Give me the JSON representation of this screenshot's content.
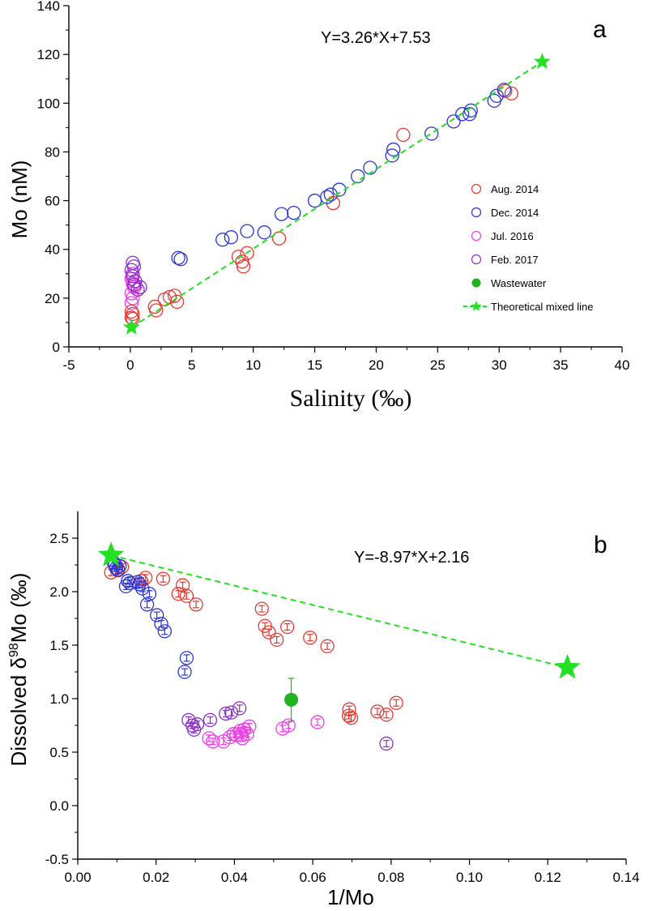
{
  "colors": {
    "aug2014": "#e8372f",
    "dec2014": "#2a35d6",
    "jul2016": "#ee3ce8",
    "feb2017": "#8a2fc9",
    "wastewater": "#22b322",
    "theoretical": "#22e022",
    "axis": "#000000"
  },
  "chart_data": [
    {
      "type": "scatter",
      "panel_label": "a",
      "equation": "Y=3.26*X+7.53",
      "xlabel": "Salinity (‰)",
      "ylabel": "Mo (nM)",
      "xlim": [
        -5,
        40
      ],
      "ylim": [
        0,
        140
      ],
      "xticks": [
        "-5",
        "0",
        "5",
        "10",
        "15",
        "20",
        "25",
        "30",
        "35",
        "40"
      ],
      "yticks": [
        "0",
        "20",
        "40",
        "60",
        "80",
        "100",
        "120",
        "140"
      ],
      "legend_position": "center-right",
      "series": [
        {
          "name": "Aug. 2014",
          "key": "aug2014",
          "marker": "open-circle",
          "points": [
            [
              0.1,
              12
            ],
            [
              0.2,
              13.5
            ],
            [
              0.1,
              14.5
            ],
            [
              0.2,
              11.5
            ],
            [
              2.0,
              16.5
            ],
            [
              2.1,
              15
            ],
            [
              2.8,
              19.5
            ],
            [
              3.2,
              20.5
            ],
            [
              3.6,
              21
            ],
            [
              3.8,
              18.5
            ],
            [
              8.8,
              37
            ],
            [
              9.1,
              35
            ],
            [
              9.2,
              33
            ],
            [
              9.5,
              38.5
            ],
            [
              12.1,
              44.5
            ],
            [
              16.5,
              59
            ],
            [
              22.2,
              87
            ],
            [
              30.5,
              105
            ],
            [
              31.0,
              104
            ]
          ]
        },
        {
          "name": "Dec. 2014",
          "key": "dec2014",
          "marker": "open-circle",
          "points": [
            [
              3.9,
              36.5
            ],
            [
              4.1,
              36
            ],
            [
              7.5,
              44
            ],
            [
              8.2,
              45
            ],
            [
              9.5,
              47.5
            ],
            [
              10.9,
              47
            ],
            [
              12.3,
              54.5
            ],
            [
              13.3,
              55
            ],
            [
              15.0,
              60
            ],
            [
              16.0,
              61.5
            ],
            [
              16.3,
              62.5
            ],
            [
              17.0,
              64.5
            ],
            [
              18.5,
              70
            ],
            [
              19.5,
              73.5
            ],
            [
              21.3,
              78.5
            ],
            [
              21.4,
              81
            ],
            [
              24.5,
              87.5
            ],
            [
              26.3,
              92.5
            ],
            [
              27.0,
              95.5
            ],
            [
              27.6,
              95.5
            ],
            [
              27.7,
              97
            ],
            [
              29.6,
              101
            ],
            [
              29.8,
              103
            ],
            [
              30.4,
              105.5
            ]
          ]
        },
        {
          "name": "Jul. 2016",
          "key": "jul2016",
          "marker": "open-circle",
          "points": [
            [
              0.1,
              18
            ],
            [
              0.2,
              20
            ],
            [
              0.1,
              22
            ],
            [
              0.3,
              24.5
            ],
            [
              0.2,
              26
            ],
            [
              0.1,
              28
            ],
            [
              0.2,
              30
            ],
            [
              0.4,
              25
            ]
          ]
        },
        {
          "name": "Feb. 2017",
          "key": "feb2017",
          "marker": "open-circle",
          "points": [
            [
              0.2,
              34.5
            ],
            [
              0.3,
              33
            ],
            [
              0.1,
              31.5
            ],
            [
              0.2,
              29
            ],
            [
              0.4,
              27
            ],
            [
              0.3,
              25.5
            ],
            [
              0.6,
              23.5
            ],
            [
              0.8,
              24.5
            ]
          ]
        },
        {
          "name": "Wastewater",
          "key": "wastewater",
          "marker": "filled-circle",
          "points": []
        },
        {
          "name": "Theoretical mixed line",
          "key": "theoretical",
          "marker": "star-dashed",
          "points": [
            [
              0.1,
              8
            ],
            [
              33.5,
              117
            ]
          ]
        }
      ]
    },
    {
      "type": "scatter",
      "panel_label": "b",
      "equation": "Y=-8.97*X+2.16",
      "xlabel": "1/Mo",
      "ylabel_prefix": "Dissolved δ",
      "ylabel_sup": "98",
      "ylabel_suffix": "Mo (‰)",
      "xlim": [
        0.0,
        0.14
      ],
      "ylim": [
        -0.5,
        2.75
      ],
      "xticks": [
        "0.00",
        "0.02",
        "0.04",
        "0.06",
        "0.08",
        "0.10",
        "0.12",
        "0.14"
      ],
      "yticks": [
        "-0.5",
        "0.0",
        "0.5",
        "1.0",
        "1.5",
        "2.0",
        "2.5"
      ],
      "series": [
        {
          "name": "Aug. 2014",
          "key": "aug2014",
          "marker": "open-circle-errorbar",
          "points": [
            [
              0.0085,
              2.18
            ],
            [
              0.0103,
              2.21
            ],
            [
              0.0113,
              2.23
            ],
            [
              0.0173,
              2.13
            ],
            [
              0.0162,
              2.1
            ],
            [
              0.0218,
              2.12
            ],
            [
              0.0257,
              1.98
            ],
            [
              0.0268,
              2.06
            ],
            [
              0.0278,
              1.96
            ],
            [
              0.0302,
              1.88
            ],
            [
              0.047,
              1.84
            ],
            [
              0.0478,
              1.68
            ],
            [
              0.0488,
              1.62
            ],
            [
              0.0508,
              1.55
            ],
            [
              0.0535,
              1.67
            ],
            [
              0.0593,
              1.57
            ],
            [
              0.0637,
              1.49
            ],
            [
              0.0693,
              0.9
            ],
            [
              0.0698,
              0.82
            ],
            [
              0.0692,
              0.84
            ],
            [
              0.0765,
              0.88
            ],
            [
              0.0788,
              0.85
            ],
            [
              0.0813,
              0.96
            ]
          ]
        },
        {
          "name": "Dec. 2014",
          "key": "dec2014",
          "marker": "open-circle-errorbar",
          "points": [
            [
              0.0092,
              2.27
            ],
            [
              0.0095,
              2.25
            ],
            [
              0.0098,
              2.22
            ],
            [
              0.0103,
              2.2
            ],
            [
              0.0107,
              2.24
            ],
            [
              0.0123,
              2.05
            ],
            [
              0.0128,
              2.1
            ],
            [
              0.0133,
              2.08
            ],
            [
              0.0153,
              2.09
            ],
            [
              0.0157,
              2.07
            ],
            [
              0.0165,
              2.03
            ],
            [
              0.0177,
              1.88
            ],
            [
              0.0183,
              1.98
            ],
            [
              0.0202,
              1.78
            ],
            [
              0.0213,
              1.7
            ],
            [
              0.0222,
              1.63
            ],
            [
              0.0278,
              1.38
            ],
            [
              0.0273,
              1.25
            ]
          ]
        },
        {
          "name": "Jul. 2016",
          "key": "jul2016",
          "marker": "open-circle-errorbar",
          "points": [
            [
              0.0335,
              0.63
            ],
            [
              0.0345,
              0.6
            ],
            [
              0.0372,
              0.6
            ],
            [
              0.0388,
              0.64
            ],
            [
              0.0398,
              0.67
            ],
            [
              0.0405,
              0.66
            ],
            [
              0.0415,
              0.7
            ],
            [
              0.0418,
              0.66
            ],
            [
              0.042,
              0.63
            ],
            [
              0.0425,
              0.71
            ],
            [
              0.0433,
              0.67
            ],
            [
              0.0438,
              0.74
            ],
            [
              0.0523,
              0.72
            ],
            [
              0.0538,
              0.75
            ],
            [
              0.0612,
              0.78
            ]
          ]
        },
        {
          "name": "Feb. 2017",
          "key": "feb2017",
          "marker": "open-circle-errorbar",
          "points": [
            [
              0.0283,
              0.8
            ],
            [
              0.0293,
              0.75
            ],
            [
              0.0297,
              0.71
            ],
            [
              0.0305,
              0.76
            ],
            [
              0.0338,
              0.8
            ],
            [
              0.0378,
              0.86
            ],
            [
              0.0392,
              0.87
            ],
            [
              0.0413,
              0.91
            ],
            [
              0.0788,
              0.58
            ]
          ]
        },
        {
          "name": "Wastewater",
          "key": "wastewater",
          "marker": "filled-circle-errorbar",
          "points": [
            [
              0.0545,
              0.99
            ]
          ],
          "error": 0.2
        },
        {
          "name": "Theoretical mixed line",
          "key": "theoretical",
          "marker": "star-dashed",
          "points": [
            [
              0.0085,
              2.34
            ],
            [
              0.125,
              1.29
            ]
          ]
        }
      ]
    }
  ]
}
